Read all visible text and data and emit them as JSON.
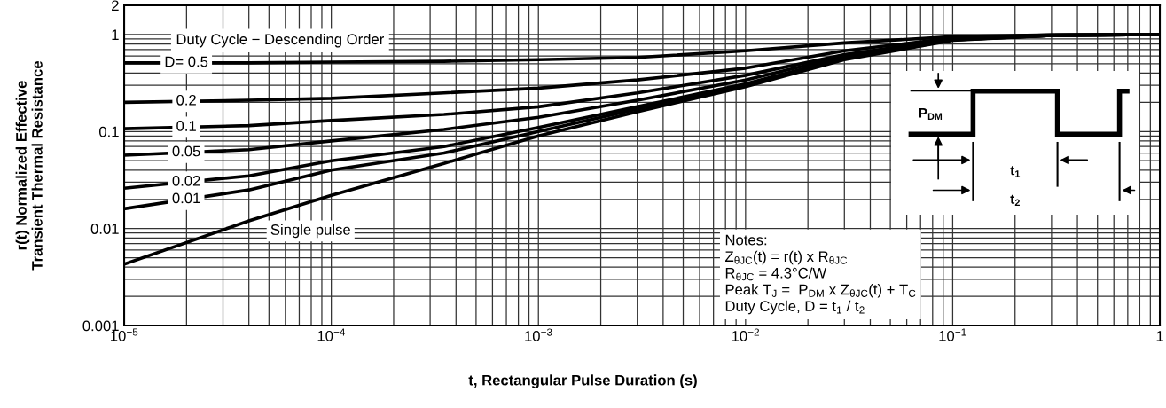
{
  "chart_data": {
    "type": "line",
    "xlabel": "t, Rectangular Pulse Duration (s)",
    "ylabel": "r(t) Normalized Effective\nTransient Thermal Resistance",
    "x": [
      1e-05,
      4e-05,
      0.0001,
      0.00035,
      0.001,
      0.003,
      0.01,
      0.03,
      0.1,
      0.3,
      1
    ],
    "series": [
      {
        "name": "D= 0.5",
        "color": "#000000",
        "values": [
          0.51,
          0.51,
          0.52,
          0.53,
          0.55,
          0.58,
          0.68,
          0.82,
          0.95,
          0.99,
          1.0
        ]
      },
      {
        "name": "0.2",
        "color": "#000000",
        "values": [
          0.2,
          0.21,
          0.22,
          0.25,
          0.28,
          0.34,
          0.45,
          0.68,
          0.92,
          0.99,
          1.0
        ]
      },
      {
        "name": "0.1",
        "color": "#000000",
        "values": [
          0.107,
          0.115,
          0.13,
          0.15,
          0.18,
          0.25,
          0.38,
          0.62,
          0.9,
          0.98,
          1.0
        ]
      },
      {
        "name": "0.05",
        "color": "#000000",
        "values": [
          0.057,
          0.065,
          0.08,
          0.105,
          0.14,
          0.21,
          0.34,
          0.6,
          0.89,
          0.98,
          1.0
        ]
      },
      {
        "name": "0.02",
        "color": "#000000",
        "values": [
          0.026,
          0.035,
          0.05,
          0.07,
          0.11,
          0.18,
          0.31,
          0.57,
          0.88,
          0.98,
          1.0
        ]
      },
      {
        "name": "0.01",
        "color": "#000000",
        "values": [
          0.016,
          0.025,
          0.04,
          0.06,
          0.1,
          0.17,
          0.3,
          0.56,
          0.88,
          0.98,
          1.0
        ]
      },
      {
        "name": "Single pulse",
        "color": "#000000",
        "values": [
          0.0043,
          0.012,
          0.022,
          0.047,
          0.09,
          0.16,
          0.29,
          0.55,
          0.87,
          0.98,
          1.0
        ]
      }
    ],
    "log": "xy",
    "xlim": [
      1e-05,
      1
    ],
    "ylim": [
      0.001,
      2
    ],
    "xticks": [
      {
        "value": 1e-05,
        "label": "10$^{−5}$"
      },
      {
        "value": 0.0001,
        "label": "10$^{−4}$"
      },
      {
        "value": 0.001,
        "label": "10$^{−3}$"
      },
      {
        "value": 0.01,
        "label": "10$^{−2}$"
      },
      {
        "value": 0.1,
        "label": "10$^{−1}$"
      },
      1
    ],
    "yticks": [
      0.001,
      0.01,
      0.1,
      1,
      2
    ],
    "grid": true,
    "line_style": "solid",
    "marker": "none",
    "annotations": [
      "Duty Cycle − Descending Order",
      "Notes:\nZ$_{θJC}$(t) = r(t) x R$_{θJC}$\nR$_{θJC}$ = 4.3°C/W\nPeak T$_{J}$ =  P$_{DM}$ x Z$_{θJC}$(t) + T$_{C}$\nDuty Cycle, D = t$_{1}$ / t$_{2}$",
      "P$_{DM}$",
      "t$_{1}$",
      "t$_{2}$"
    ]
  }
}
